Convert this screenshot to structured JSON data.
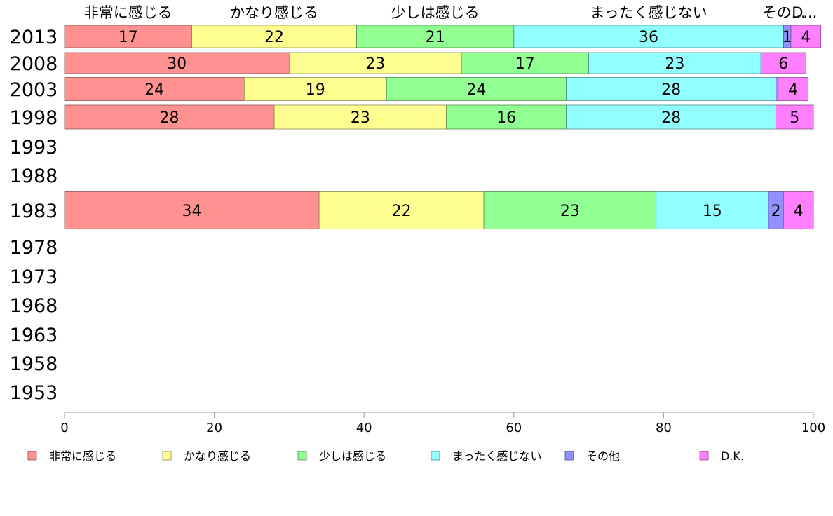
{
  "chart_data": {
    "type": "bar",
    "orientation": "horizontal",
    "stacked": true,
    "categories": [
      "2013",
      "2008",
      "2003",
      "1998",
      "1993",
      "1988",
      "1983",
      "1978",
      "1973",
      "1968",
      "1963",
      "1958",
      "1953"
    ],
    "series": [
      {
        "name": "非常に感じる",
        "color": "#ff9191",
        "values": [
          17,
          30,
          24,
          28,
          null,
          null,
          34,
          null,
          null,
          null,
          null,
          null,
          null
        ]
      },
      {
        "name": "かなり感じる",
        "color": "#ffff91",
        "values": [
          22,
          23,
          19,
          23,
          null,
          null,
          22,
          null,
          null,
          null,
          null,
          null,
          null
        ]
      },
      {
        "name": "少しは感じる",
        "color": "#91ff91",
        "values": [
          21,
          17,
          24,
          16,
          null,
          null,
          23,
          null,
          null,
          null,
          null,
          null,
          null
        ]
      },
      {
        "name": "まったく感じない",
        "color": "#91ffff",
        "values": [
          36,
          23,
          28,
          28,
          null,
          null,
          15,
          null,
          null,
          null,
          null,
          null,
          null
        ]
      },
      {
        "name": "その他",
        "color": "#9191ff",
        "values": [
          1,
          0,
          0.3,
          0,
          null,
          null,
          2,
          null,
          null,
          null,
          null,
          null,
          null
        ]
      },
      {
        "name": "D.K.",
        "color": "#ff80ff",
        "values": [
          4,
          6,
          4,
          5,
          null,
          null,
          4,
          null,
          null,
          null,
          null,
          null,
          null
        ]
      }
    ],
    "top_labels": [
      "非常に感じる",
      "かなり感じる",
      "少しは感じる",
      "まったく感じない",
      "その他",
      "D.K."
    ],
    "top_labels_display": [
      "非常に感じる",
      "かなり感じる",
      "少しは感じる",
      "まったく感じない",
      "その...",
      "D..."
    ],
    "value_labels": [
      [
        "17",
        "22",
        "21",
        "36",
        "1",
        "4"
      ],
      [
        "30",
        "23",
        "17",
        "23",
        "",
        "6"
      ],
      [
        "24",
        "19",
        "24",
        "28",
        "",
        "4"
      ],
      [
        "28",
        "23",
        "16",
        "28",
        "",
        "5"
      ],
      [],
      [],
      [
        "34",
        "22",
        "23",
        "15",
        "2",
        "4"
      ],
      [],
      [],
      [],
      [],
      [],
      []
    ],
    "xlim": [
      0,
      100
    ],
    "xticks": [
      0,
      20,
      40,
      60,
      80,
      100
    ],
    "xlabel": "",
    "ylabel": "",
    "grid": false,
    "legend_position": "bottom",
    "legend": [
      "非常に感じる",
      "かなり感じる",
      "少しは感じる",
      "まったく感じない",
      "その他",
      "D.K."
    ]
  }
}
